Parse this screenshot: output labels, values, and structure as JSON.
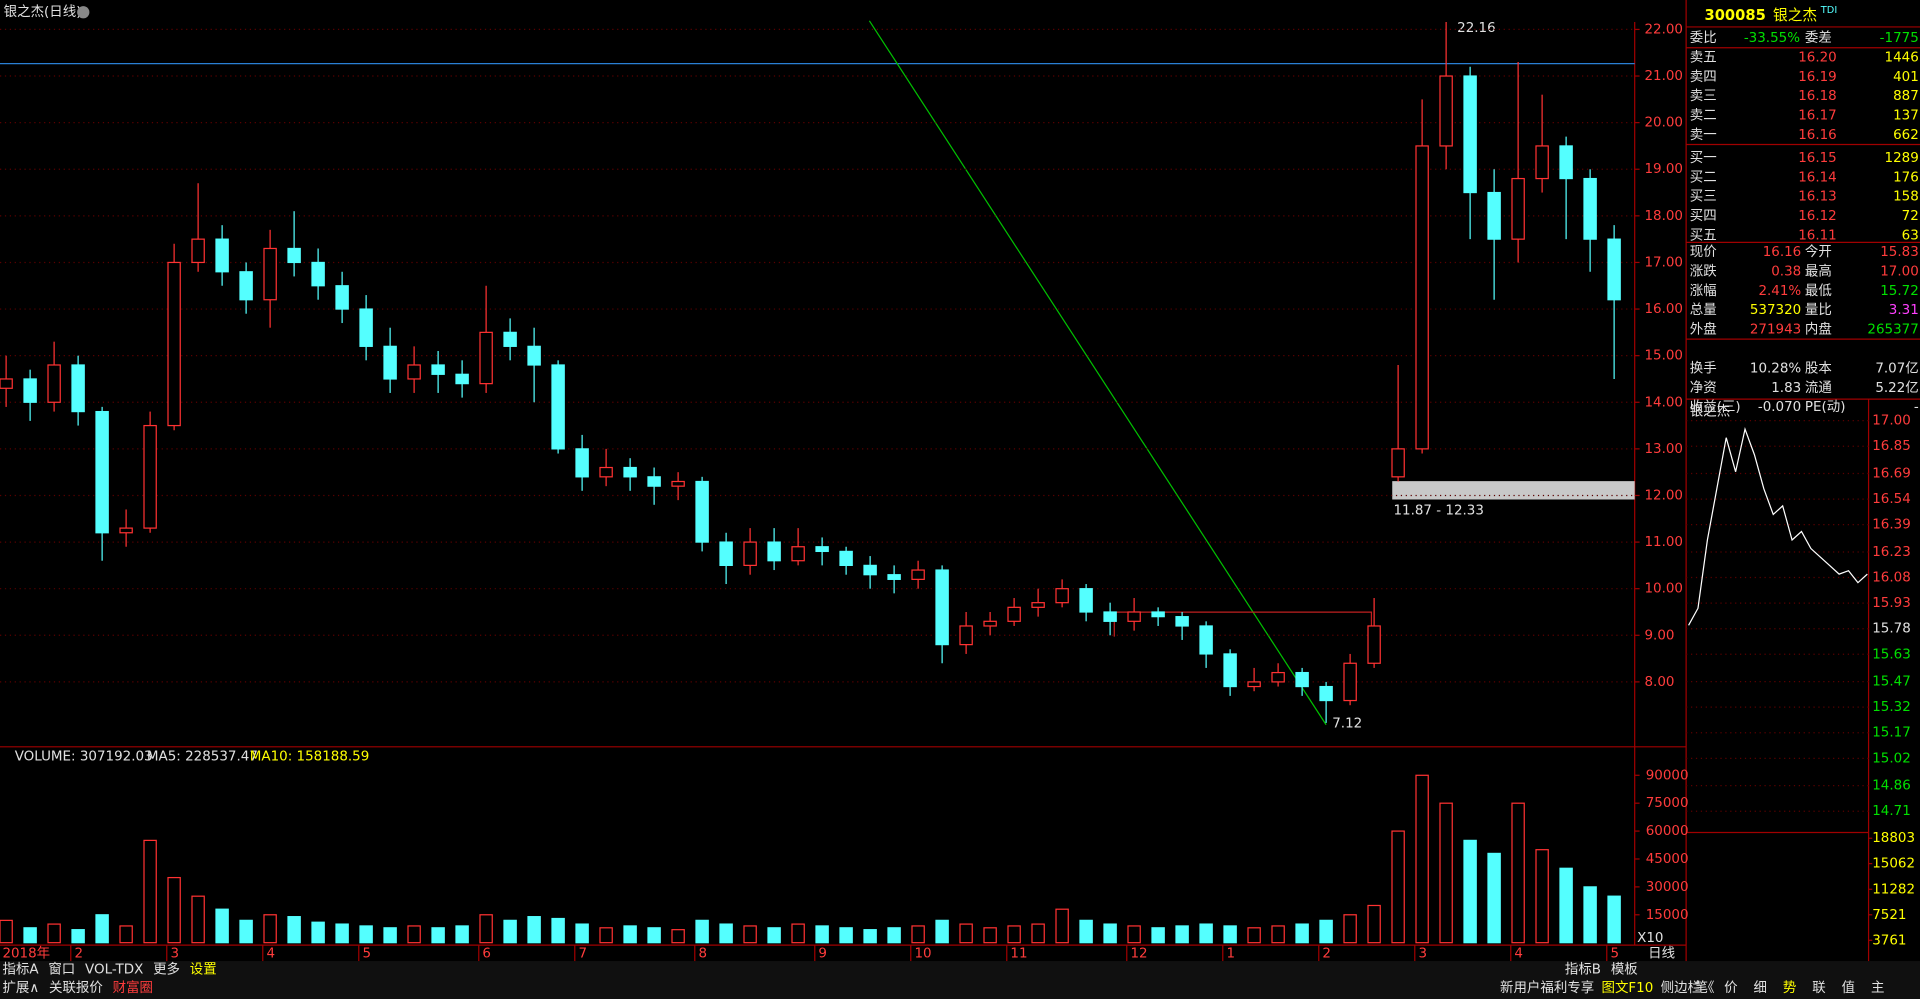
{
  "title": "银之杰(日线)",
  "chart_data": {
    "type": "candlestick",
    "categories": [
      "2018年",
      null,
      null,
      "2",
      null,
      null,
      null,
      "3",
      null,
      null,
      null,
      "4",
      null,
      null,
      null,
      "5",
      null,
      null,
      null,
      null,
      "6",
      null,
      null,
      null,
      "7",
      null,
      null,
      null,
      null,
      "8",
      null,
      null,
      null,
      null,
      "9",
      null,
      null,
      null,
      "10",
      null,
      null,
      null,
      "11",
      null,
      null,
      null,
      null,
      "12",
      null,
      null,
      null,
      "1",
      null,
      null,
      null,
      "2",
      null,
      null,
      null,
      "3",
      null,
      null,
      null,
      "4",
      null,
      null,
      null,
      "5"
    ],
    "open": [
      14.3,
      14.5,
      14.0,
      14.8,
      13.8,
      11.2,
      11.3,
      13.5,
      17.0,
      17.5,
      16.8,
      16.2,
      17.3,
      17.0,
      16.5,
      16.0,
      15.2,
      14.5,
      14.8,
      14.6,
      14.4,
      15.5,
      15.2,
      14.8,
      13.0,
      12.4,
      12.6,
      12.4,
      12.2,
      12.3,
      11.0,
      10.5,
      11.0,
      10.6,
      10.9,
      10.8,
      10.5,
      10.3,
      10.2,
      10.4,
      8.8,
      9.2,
      9.3,
      9.6,
      9.7,
      10.0,
      9.5,
      9.3,
      9.5,
      9.4,
      9.2,
      8.6,
      7.9,
      8.0,
      8.2,
      7.9,
      7.6,
      8.4,
      12.4,
      13.0,
      19.5,
      21.0,
      18.5,
      17.5,
      18.8,
      19.5,
      18.8,
      17.5
    ],
    "high": [
      15.0,
      14.7,
      15.3,
      15.0,
      13.9,
      11.7,
      13.8,
      17.4,
      18.7,
      17.8,
      17.0,
      17.7,
      18.1,
      17.3,
      16.8,
      16.3,
      15.6,
      15.2,
      15.1,
      14.9,
      16.5,
      15.8,
      15.6,
      14.9,
      13.3,
      13.0,
      12.8,
      12.6,
      12.5,
      12.4,
      11.2,
      11.3,
      11.3,
      11.3,
      11.1,
      10.9,
      10.7,
      10.5,
      10.6,
      10.5,
      9.5,
      9.5,
      9.8,
      10.0,
      10.2,
      10.1,
      9.7,
      9.8,
      9.6,
      9.5,
      9.3,
      8.7,
      8.3,
      8.4,
      8.3,
      8.0,
      8.6,
      9.8,
      14.8,
      20.5,
      22.16,
      21.2,
      19.0,
      21.3,
      20.6,
      19.7,
      19.0,
      17.8
    ],
    "low": [
      13.9,
      13.6,
      13.8,
      13.5,
      10.6,
      10.9,
      11.2,
      13.4,
      16.8,
      16.5,
      15.9,
      15.6,
      16.7,
      16.2,
      15.7,
      14.9,
      14.2,
      14.2,
      14.2,
      14.1,
      14.2,
      14.9,
      14.0,
      12.9,
      12.1,
      12.2,
      12.1,
      11.8,
      11.9,
      10.8,
      10.1,
      10.3,
      10.4,
      10.5,
      10.5,
      10.3,
      10.0,
      9.9,
      10.0,
      8.4,
      8.6,
      9.0,
      9.2,
      9.4,
      9.6,
      9.3,
      9.0,
      9.1,
      9.2,
      8.9,
      8.3,
      7.7,
      7.8,
      7.9,
      7.7,
      7.12,
      7.5,
      8.3,
      12.3,
      12.9,
      19.0,
      17.5,
      16.2,
      17.0,
      18.5,
      17.5,
      16.8,
      14.5
    ],
    "close": [
      14.5,
      14.0,
      14.8,
      13.8,
      11.2,
      11.3,
      13.5,
      17.0,
      17.5,
      16.8,
      16.2,
      17.3,
      17.0,
      16.5,
      16.0,
      15.2,
      14.5,
      14.8,
      14.6,
      14.4,
      15.5,
      15.2,
      14.8,
      13.0,
      12.4,
      12.6,
      12.4,
      12.2,
      12.3,
      11.0,
      10.5,
      11.0,
      10.6,
      10.9,
      10.8,
      10.5,
      10.3,
      10.2,
      10.4,
      8.8,
      9.2,
      9.3,
      9.6,
      9.7,
      10.0,
      9.5,
      9.3,
      9.5,
      9.4,
      9.2,
      8.6,
      7.9,
      8.0,
      8.2,
      7.9,
      7.6,
      8.4,
      9.2,
      13.0,
      19.5,
      21.0,
      18.5,
      17.5,
      18.8,
      19.5,
      18.8,
      17.5,
      16.2
    ],
    "ylim": [
      6.66,
      22.5
    ],
    "yticks": [
      {
        "value": 22,
        "label": "22.00"
      },
      {
        "value": 21,
        "label": "21.00"
      },
      {
        "value": 20,
        "label": "20.00"
      },
      {
        "value": 19,
        "label": "19.00"
      },
      {
        "value": 18,
        "label": "18.00"
      },
      {
        "value": 17,
        "label": "17.00"
      },
      {
        "value": 16,
        "label": "16.00"
      },
      {
        "value": 15,
        "label": "15.00"
      },
      {
        "value": 14,
        "label": "14.00"
      },
      {
        "value": 13,
        "label": "13.00"
      },
      {
        "value": 12,
        "label": "12.00"
      },
      {
        "value": 11,
        "label": "11.00"
      },
      {
        "value": 10,
        "label": "10.00"
      },
      {
        "value": 9,
        "label": "9.00"
      },
      {
        "value": 8,
        "label": "8.00"
      }
    ],
    "annotations": {
      "high": "22.16",
      "low": "7.12",
      "range": "11.87 - 12.33"
    },
    "volume": {
      "legend": [
        "VOLUME: 307192.03",
        "MA5: 228537.47",
        "MA10: 158188.59"
      ],
      "values": [
        12000,
        8000,
        10000,
        7000,
        15000,
        9000,
        55000,
        35000,
        25000,
        18000,
        12000,
        15000,
        14000,
        11000,
        10000,
        9000,
        8000,
        9000,
        8000,
        9000,
        15000,
        12000,
        14000,
        13000,
        10000,
        8000,
        9000,
        8000,
        7000,
        12000,
        10000,
        9000,
        8000,
        10000,
        9000,
        8000,
        7000,
        8000,
        9000,
        12000,
        10000,
        8000,
        9000,
        10000,
        18000,
        12000,
        10000,
        9000,
        8000,
        9000,
        10000,
        9000,
        8000,
        9000,
        10000,
        12000,
        15000,
        20000,
        60000,
        90000,
        75000,
        55000,
        48000,
        75000,
        50000,
        40000,
        30000,
        25000
      ],
      "ylim": [
        0,
        104000
      ],
      "yticks": [
        15000,
        30000,
        45000,
        60000,
        75000,
        90000
      ]
    },
    "period": "日线",
    "zoom": "X10"
  },
  "quote": {
    "code": "300085",
    "name": "银之杰",
    "tag": "TDI",
    "ratio": [
      "委比",
      "-33.55%",
      "委差",
      "-1775"
    ],
    "orders": [
      [
        "卖五",
        "16.20",
        "1446"
      ],
      [
        "卖四",
        "16.19",
        "401"
      ],
      [
        "卖三",
        "16.18",
        "887"
      ],
      [
        "卖二",
        "16.17",
        "137"
      ],
      [
        "卖一",
        "16.16",
        "662"
      ],
      [
        "买一",
        "16.15",
        "1289"
      ],
      [
        "买二",
        "16.14",
        "176"
      ],
      [
        "买三",
        "16.13",
        "158"
      ],
      [
        "买四",
        "16.12",
        "72"
      ],
      [
        "买五",
        "16.11",
        "63"
      ]
    ],
    "stats": [
      [
        "现价",
        "16.16",
        "今开",
        "15.83"
      ],
      [
        "涨跌",
        "0.38",
        "最高",
        "17.00"
      ],
      [
        "涨幅",
        "2.41%",
        "最低",
        "15.72"
      ],
      [
        "总量",
        "537320",
        "量比",
        "3.31"
      ],
      [
        "外盘",
        "271943",
        "内盘",
        "265377"
      ],
      [
        "换手",
        "10.28%",
        "股本",
        "7.07亿"
      ],
      [
        "净资",
        "1.83",
        "流通",
        "5.22亿"
      ],
      [
        "收益(三)",
        "-0.070",
        "PE(动)",
        "-"
      ]
    ]
  },
  "intraday": {
    "title": "银之杰",
    "price": [
      15.8,
      15.9,
      16.3,
      16.6,
      16.9,
      16.7,
      16.95,
      16.8,
      16.6,
      16.45,
      16.5,
      16.3,
      16.35,
      16.25,
      16.2,
      16.15,
      16.1,
      16.12,
      16.05,
      16.1
    ],
    "ylim": [
      14.7,
      17.04
    ],
    "yticks": [
      {
        "value": 17,
        "label": "17.00"
      },
      {
        "value": 16.85,
        "label": "16.85"
      },
      {
        "value": 16.69,
        "label": "16.69"
      },
      {
        "value": 16.54,
        "label": "16.54"
      },
      {
        "value": 16.39,
        "label": "16.39"
      },
      {
        "value": 16.23,
        "label": "16.23"
      },
      {
        "value": 16.08,
        "label": "16.08"
      },
      {
        "value": 15.93,
        "label": "15.93"
      },
      {
        "value": 15.78,
        "label": "15.78"
      },
      {
        "value": 15.63,
        "label": "15.63"
      },
      {
        "value": 15.47,
        "label": "15.47"
      },
      {
        "value": 15.32,
        "label": "15.32"
      },
      {
        "value": 15.17,
        "label": "15.17"
      },
      {
        "value": 15.02,
        "label": "15.02"
      },
      {
        "value": 14.86,
        "label": "14.86"
      },
      {
        "value": 14.71,
        "label": "14.71"
      }
    ],
    "volume_ylim": [
      3408,
      19650
    ],
    "volume_ticks": [
      18803,
      15062,
      11282,
      7521,
      3761
    ]
  },
  "toolbar": {
    "left": [
      "指标A",
      "窗口",
      "VOL-TDX",
      "更多",
      "设置"
    ],
    "left2": [
      "扩展∧",
      "关联报价",
      "财富圈"
    ],
    "right": [
      "指标B",
      "模板"
    ],
    "bottom_right": [
      "新用户福利专享",
      "图文F10",
      "侧边栏《"
    ],
    "side_tabs": [
      "笔",
      "价",
      "细",
      "势",
      "联",
      "值",
      "主"
    ]
  }
}
